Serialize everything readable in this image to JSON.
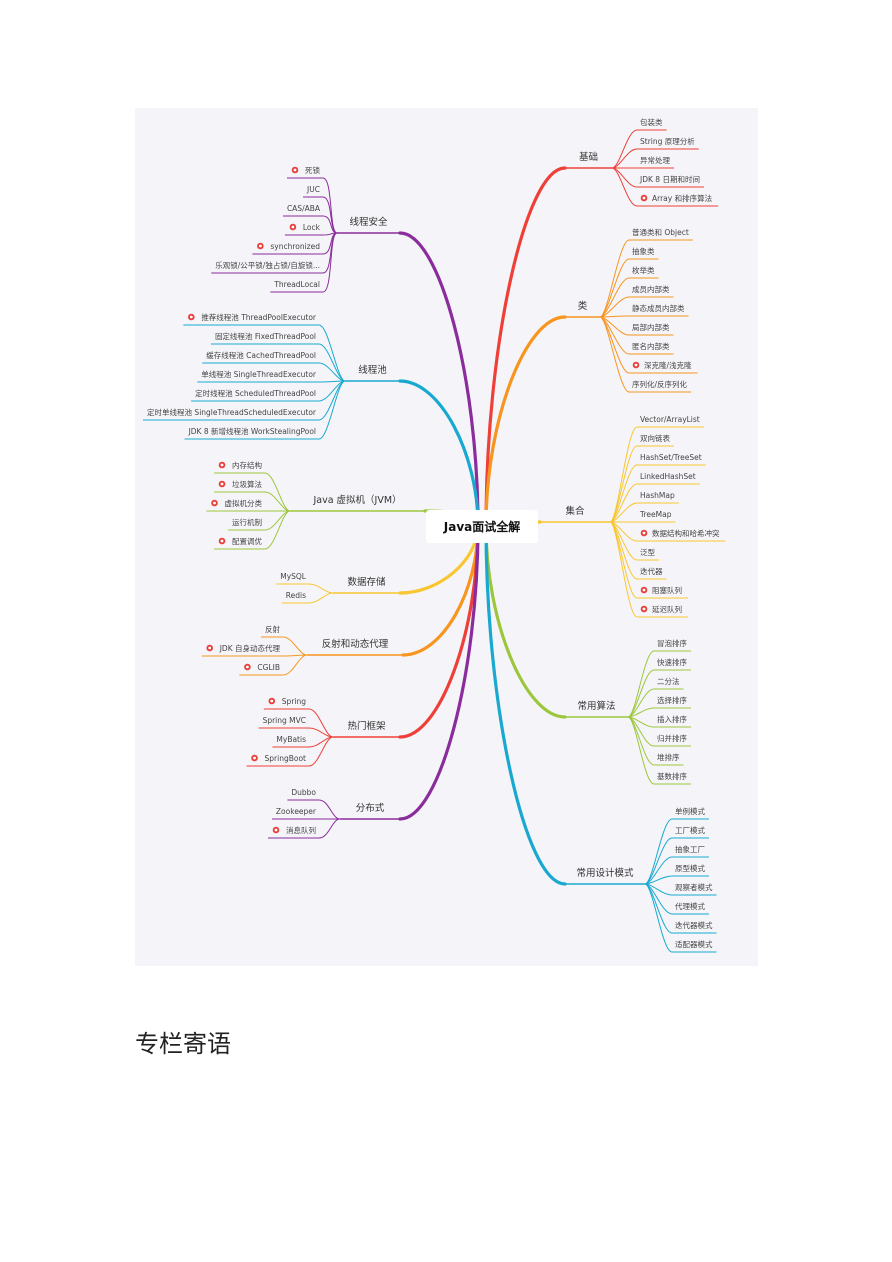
{
  "mindmap": {
    "root": "Java面试全解",
    "branches": [
      {
        "label": "线程安全",
        "side": "left",
        "color": "#8b2c9c",
        "children": [
          {
            "t": "死锁",
            "star": true
          },
          {
            "t": "JUC"
          },
          {
            "t": "CAS/ABA"
          },
          {
            "t": "Lock",
            "star": true
          },
          {
            "t": "synchronized",
            "star": true
          },
          {
            "t": "乐观锁/公平锁/独占锁/自旋锁..."
          },
          {
            "t": "ThreadLocal"
          }
        ]
      },
      {
        "label": "线程池",
        "side": "left",
        "color": "#19a9d0",
        "children": [
          {
            "t": "推荐线程池 ThreadPoolExecutor",
            "star": true
          },
          {
            "t": "固定线程池 FixedThreadPool"
          },
          {
            "t": "缓存线程池 CachedThreadPool"
          },
          {
            "t": "单线程池 SingleThreadExecutor"
          },
          {
            "t": "定时线程池 ScheduledThreadPool"
          },
          {
            "t": "定时单线程池 SingleThreadScheduledExecutor"
          },
          {
            "t": "JDK 8 新增线程池 WorkStealingPool"
          }
        ]
      },
      {
        "label": "Java 虚拟机（JVM）",
        "side": "left",
        "color": "#9cc63c",
        "children": [
          {
            "t": "内存结构",
            "star": true
          },
          {
            "t": "垃圾算法",
            "star": true
          },
          {
            "t": "虚拟机分类",
            "star": true
          },
          {
            "t": "运行机制"
          },
          {
            "t": "配置调优",
            "star": true
          }
        ]
      },
      {
        "label": "数据存储",
        "side": "left",
        "color": "#f8c630",
        "children": [
          {
            "t": "MySQL"
          },
          {
            "t": "Redis"
          }
        ]
      },
      {
        "label": "反射和动态代理",
        "side": "left",
        "color": "#f7951f",
        "children": [
          {
            "t": "反射"
          },
          {
            "t": "JDK 自身动态代理",
            "star": true
          },
          {
            "t": "CGLIB",
            "star": true
          }
        ]
      },
      {
        "label": "热门框架",
        "side": "left",
        "color": "#ee4038",
        "children": [
          {
            "t": "Spring",
            "star": true
          },
          {
            "t": "Spring MVC"
          },
          {
            "t": "MyBatis"
          },
          {
            "t": "SpringBoot",
            "star": true
          }
        ]
      },
      {
        "label": "分布式",
        "side": "left",
        "color": "#8b2c9c",
        "children": [
          {
            "t": "Dubbo"
          },
          {
            "t": "Zookeeper"
          },
          {
            "t": "消息队列",
            "star": true
          }
        ]
      },
      {
        "label": "基础",
        "side": "right",
        "color": "#ee4038",
        "children": [
          {
            "t": "包装类"
          },
          {
            "t": "String 原理分析"
          },
          {
            "t": "异常处理"
          },
          {
            "t": "JDK 8 日期和时间"
          },
          {
            "t": "Array 和排序算法",
            "star": true
          }
        ]
      },
      {
        "label": "类",
        "side": "right",
        "color": "#f7951f",
        "children": [
          {
            "t": "普通类和 Object"
          },
          {
            "t": "抽象类"
          },
          {
            "t": "枚举类"
          },
          {
            "t": "成员内部类"
          },
          {
            "t": "静态成员内部类"
          },
          {
            "t": "局部内部类"
          },
          {
            "t": "匿名内部类"
          },
          {
            "t": "深克隆/浅克隆",
            "star": true
          },
          {
            "t": "序列化/反序列化"
          }
        ]
      },
      {
        "label": "集合",
        "side": "right",
        "color": "#f8c630",
        "children": [
          {
            "t": "Vector/ArrayList"
          },
          {
            "t": "双向链表"
          },
          {
            "t": "HashSet/TreeSet"
          },
          {
            "t": "LinkedHashSet"
          },
          {
            "t": "HashMap"
          },
          {
            "t": "TreeMap"
          },
          {
            "t": "数据结构和哈希冲突",
            "star": true
          },
          {
            "t": "泛型"
          },
          {
            "t": "迭代器"
          },
          {
            "t": "阻塞队列",
            "star": true
          },
          {
            "t": "延迟队列",
            "star": true
          }
        ]
      },
      {
        "label": "常用算法",
        "side": "right",
        "color": "#9cc63c",
        "children": [
          {
            "t": "冒泡排序"
          },
          {
            "t": "快速排序"
          },
          {
            "t": "二分法"
          },
          {
            "t": "选择排序"
          },
          {
            "t": "插入排序"
          },
          {
            "t": "归并排序"
          },
          {
            "t": "堆排序"
          },
          {
            "t": "基数排序"
          }
        ]
      },
      {
        "label": "常用设计模式",
        "side": "right",
        "color": "#19a9d0",
        "children": [
          {
            "t": "单例模式"
          },
          {
            "t": "工厂模式"
          },
          {
            "t": "抽象工厂"
          },
          {
            "t": "原型模式"
          },
          {
            "t": "观察者模式"
          },
          {
            "t": "代理模式"
          },
          {
            "t": "迭代器模式"
          },
          {
            "t": "适配器模式"
          }
        ]
      }
    ],
    "star_color": "#e8413c"
  },
  "section": {
    "title": "专栏寄语"
  }
}
